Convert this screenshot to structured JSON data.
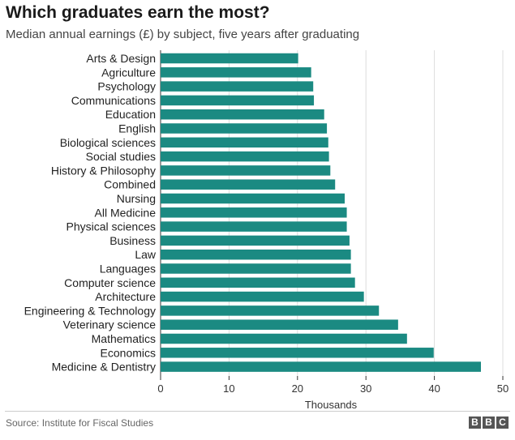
{
  "chart_data": {
    "type": "bar",
    "orientation": "horizontal",
    "title": "Which graduates earn the most?",
    "subtitle": "Median annual earnings (£) by subject, five years after graduating",
    "xlabel": "Thousands",
    "ylabel": "",
    "xlim": [
      0,
      50
    ],
    "xticks": [
      "0",
      "10",
      "20",
      "30",
      "40",
      "50"
    ],
    "grid": true,
    "bar_color": "#1b8a82",
    "categories": [
      "Arts & Design",
      "Agriculture",
      "Psychology",
      "Communications",
      "Education",
      "English",
      "Biological sciences",
      "Social studies",
      "History & Philosophy",
      "Combined",
      "Nursing",
      "All Medicine",
      "Physical sciences",
      "Business",
      "Law",
      "Languages",
      "Computer science",
      "Architecture",
      "Engineering & Technology",
      "Veterinary science",
      "Mathematics",
      "Economics",
      "Medicine & Dentistry"
    ],
    "values": [
      20.1,
      22.0,
      22.3,
      22.4,
      23.9,
      24.3,
      24.5,
      24.6,
      24.8,
      25.5,
      26.9,
      27.2,
      27.2,
      27.6,
      27.8,
      27.8,
      28.4,
      29.7,
      31.9,
      34.7,
      36.0,
      39.9,
      46.8
    ]
  },
  "footer": {
    "source": "Source: Institute for Fiscal Studies"
  },
  "logo": {
    "letters": [
      "B",
      "B",
      "C"
    ]
  }
}
